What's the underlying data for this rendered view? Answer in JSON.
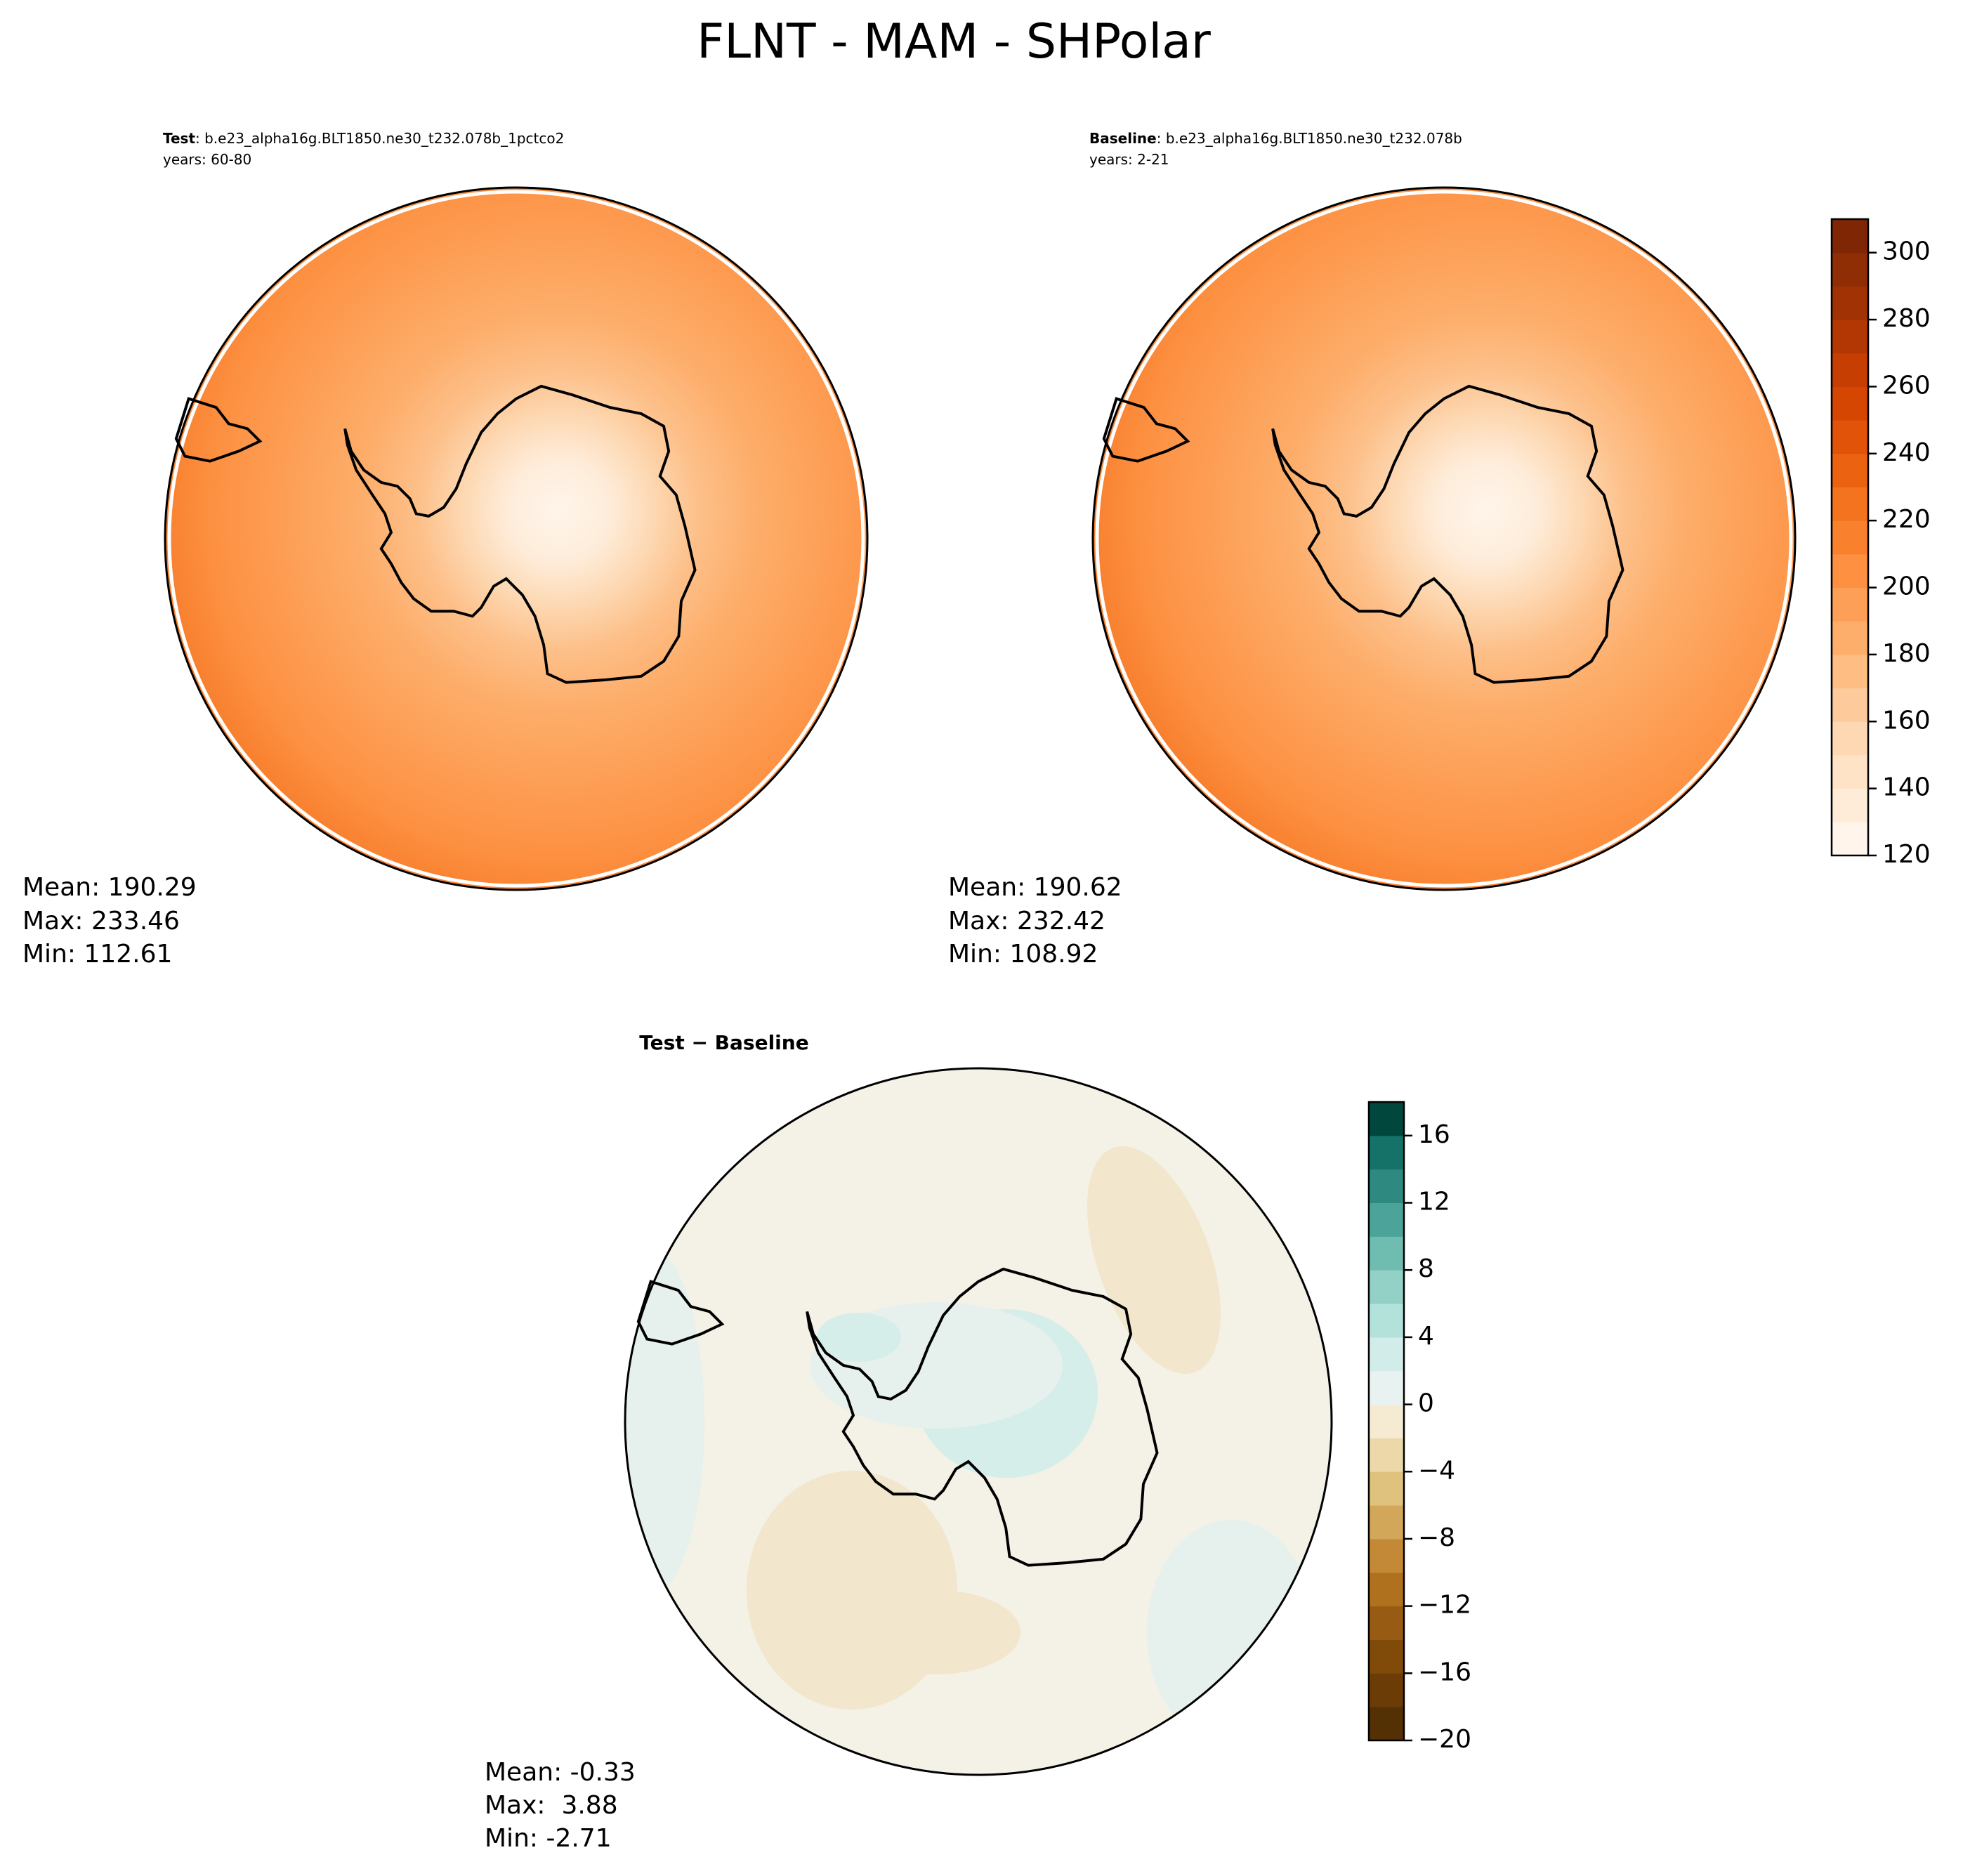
{
  "title": "FLNT - MAM - SHPolar",
  "panels": [
    {
      "label": "Test",
      "case": ": b.e23_alpha16g.BLT1850.ne30_t232.078b_1pctco2",
      "years": "years: 60-80",
      "stats": [
        "Mean: 190.29",
        "Max: 233.46",
        "Min: 112.61"
      ]
    },
    {
      "label": "Baseline",
      "case": ": b.e23_alpha16g.BLT1850.ne30_t232.078b",
      "years": "years: 2-21",
      "stats": [
        "Mean: 190.62",
        "Max: 232.42",
        "Min: 108.92"
      ]
    },
    {
      "label": "Test − Baseline",
      "stats": [
        "Mean: -0.33",
        "Max:  3.88",
        "Min: -2.71"
      ]
    }
  ],
  "colorbars": [
    {
      "lim": [
        120,
        310
      ],
      "levels": [
        120,
        130,
        140,
        150,
        160,
        170,
        180,
        190,
        200,
        210,
        220,
        230,
        240,
        250,
        260,
        270,
        280,
        290,
        300,
        310
      ],
      "colors": [
        "#fff5eb",
        "#feecd9",
        "#fee3c6",
        "#fdd8b2",
        "#fdcb9b",
        "#fdbd83",
        "#fdae6b",
        "#fd9f56",
        "#fd9041",
        "#f9812e",
        "#f3731f",
        "#eb6311",
        "#e15308",
        "#d54603",
        "#c63e02",
        "#b33702",
        "#a13203",
        "#8f2d04",
        "#7f2704"
      ],
      "ticks": [
        120,
        140,
        160,
        180,
        200,
        220,
        240,
        260,
        280,
        300
      ]
    },
    {
      "lim": [
        -20,
        18
      ],
      "levels": [
        -20,
        -18,
        -16,
        -14,
        -12,
        -10,
        -8,
        -6,
        -4,
        -2,
        0,
        2,
        4,
        6,
        8,
        10,
        12,
        14,
        16,
        18
      ],
      "colors": [
        "#543005",
        "#6b3c06",
        "#804a09",
        "#985b13",
        "#b0711f",
        "#c48936",
        "#d2a75a",
        "#dfc27d",
        "#ecd8a8",
        "#f5ebd3",
        "#e8f2f0",
        "#d2ede9",
        "#b3e2da",
        "#93d1c6",
        "#6fbcb0",
        "#4ca399",
        "#2e8a81",
        "#147268",
        "#01473d"
      ],
      "ticks": [
        {
          "value": -20,
          "label": "−20"
        },
        {
          "value": -16,
          "label": "−16"
        },
        {
          "value": -12,
          "label": "−12"
        },
        {
          "value": -8,
          "label": "−8"
        },
        {
          "value": -4,
          "label": "−4"
        },
        0,
        4,
        8,
        12,
        16
      ]
    }
  ]
}
